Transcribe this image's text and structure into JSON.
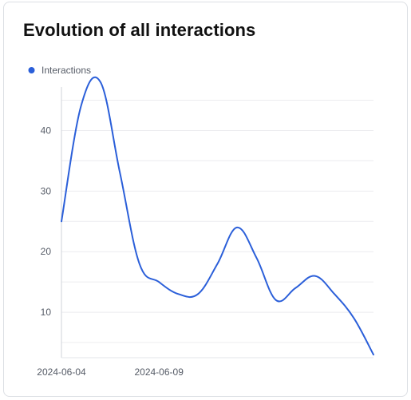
{
  "card": {
    "title": "Evolution of all interactions"
  },
  "chart_data": {
    "type": "line",
    "title": "Evolution of all interactions",
    "xlabel": "",
    "ylabel": "",
    "legend_position": "top-left",
    "grid": true,
    "ylim": [
      2.5,
      48.5
    ],
    "y_ticks": [
      10,
      20,
      30,
      40
    ],
    "x": [
      "2024-06-04",
      "2024-06-05",
      "2024-06-06",
      "2024-06-07",
      "2024-06-08",
      "2024-06-09",
      "2024-06-10",
      "2024-06-11",
      "2024-06-12",
      "2024-06-13",
      "2024-06-14",
      "2024-06-15",
      "2024-06-16",
      "2024-06-17",
      "2024-06-18",
      "2024-06-19",
      "2024-06-20"
    ],
    "x_tick_labels": [
      "2024-06-04",
      "2024-06-09"
    ],
    "series": [
      {
        "name": "Interactions",
        "color": "#2b5fd9",
        "values": [
          25,
          44,
          48,
          33,
          18,
          15,
          13,
          13,
          18,
          24,
          19,
          12,
          14,
          16,
          13,
          9,
          3
        ]
      }
    ]
  }
}
